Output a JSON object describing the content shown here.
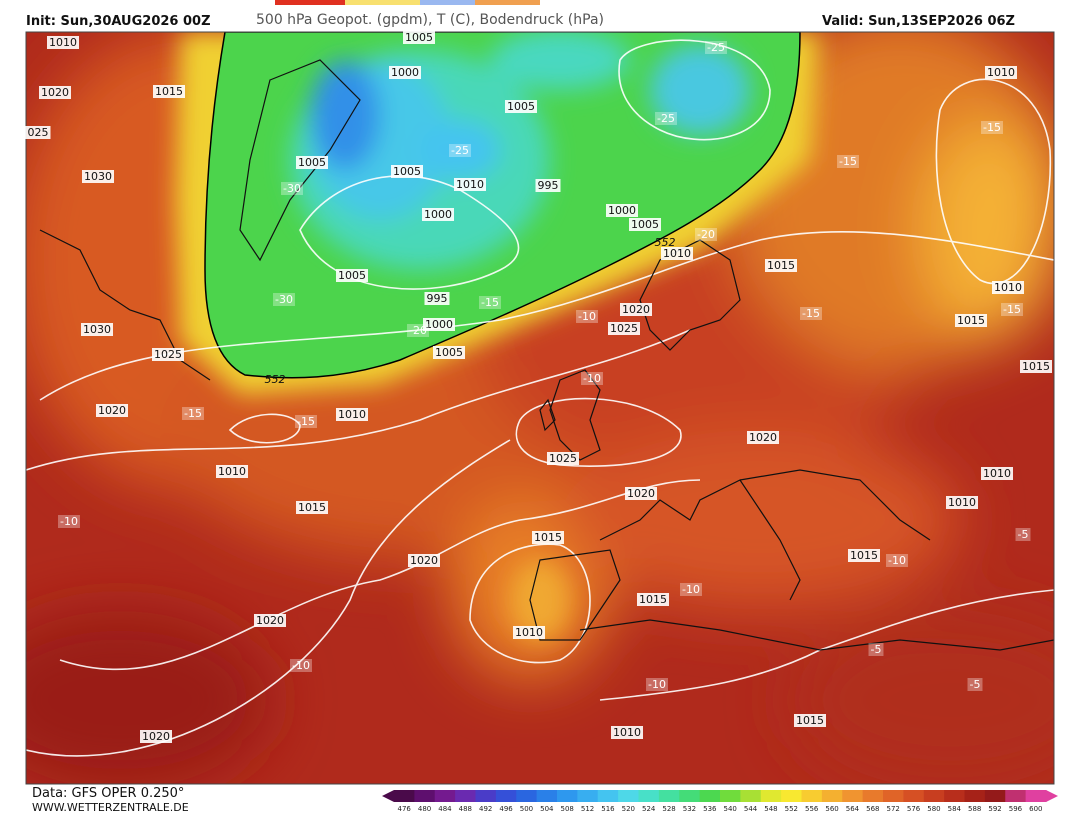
{
  "header": {
    "init": "Init: Sun,30AUG2026 00Z",
    "title": "500 hPa Geopot. (gpdm), T (C), Bodendruck (hPa)",
    "valid": "Valid: Sun,13SEP2026 06Z"
  },
  "footer": {
    "source": "Data: GFS OPER 0.250°",
    "site": "WWW.WETTERZENTRALE.DE"
  },
  "colorbar": {
    "labels": [
      476,
      480,
      484,
      488,
      492,
      496,
      500,
      504,
      508,
      512,
      516,
      520,
      524,
      528,
      532,
      536,
      540,
      544,
      548,
      552,
      556,
      560,
      564,
      568,
      572,
      576,
      580,
      584,
      588,
      592,
      596,
      600
    ],
    "colors": [
      "#4a0a4a",
      "#5e0f6e",
      "#741a8f",
      "#6a2ab0",
      "#4a3cc8",
      "#3550d8",
      "#2a66e0",
      "#2a80e8",
      "#2e98ee",
      "#38aef0",
      "#44c4f0",
      "#4ed8e8",
      "#48e0c8",
      "#44e0a0",
      "#44dc78",
      "#4cd850",
      "#70dc3c",
      "#a8e034",
      "#e0e830",
      "#f8e830",
      "#f8cc30",
      "#f4b030",
      "#f09430",
      "#e87a2c",
      "#e06428",
      "#d65024",
      "#c83e20",
      "#b82e1c",
      "#a62218",
      "#941a1a",
      "#c03070",
      "#e040a0"
    ]
  },
  "map": {
    "isobar_labels": [
      1010,
      1020,
      1015,
      "025",
      1030,
      1030,
      1025,
      1020,
      1010,
      1015,
      1010,
      1005,
      1005,
      1000,
      1005,
      1005,
      1010,
      995,
      1000,
      1000,
      1005,
      1010,
      1015,
      1005,
      995,
      1000,
      1005,
      1020,
      1025,
      1020,
      1025,
      1020,
      1015,
      1020,
      1015,
      1010,
      1020,
      1020,
      1010,
      1015,
      1010,
      1010,
      1015,
      1015,
      1010,
      1010,
      1015
    ],
    "temperature_labels": [
      -15,
      -15,
      -15,
      -15,
      -25,
      -25,
      -25,
      -30,
      -30,
      -20,
      -15,
      -10,
      -10,
      -20,
      -15,
      -15,
      -10,
      -10,
      -10,
      -10,
      -10,
      -5,
      -5,
      -5
    ],
    "thickness_labels": [
      552,
      552
    ]
  }
}
